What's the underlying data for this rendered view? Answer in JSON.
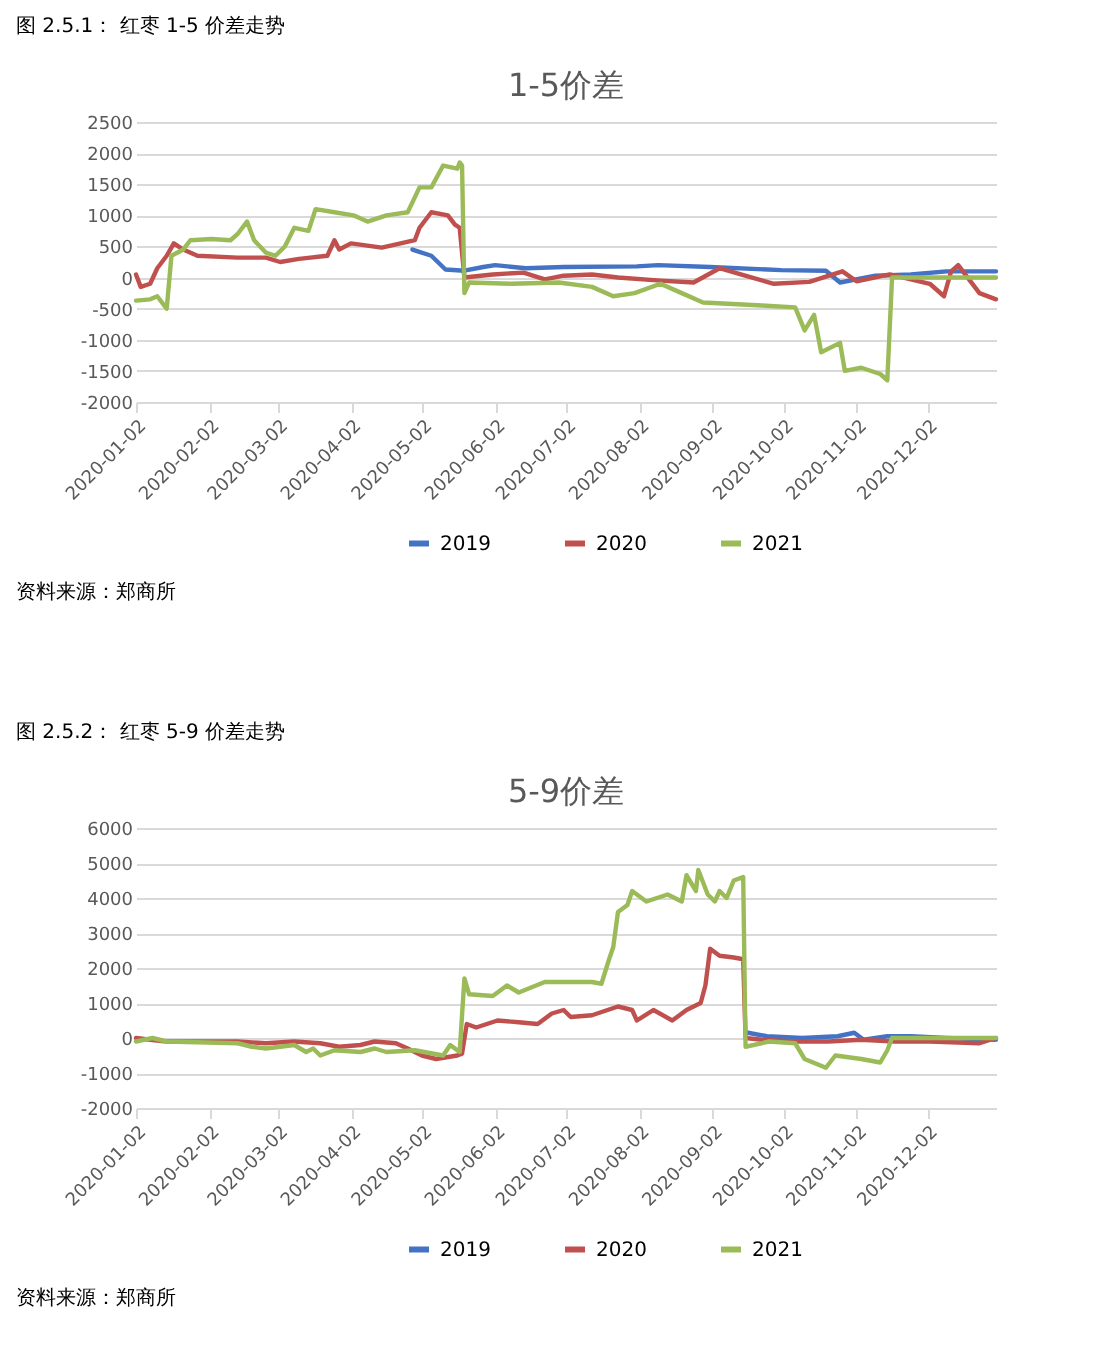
{
  "chart_data": [
    {
      "type": "line",
      "title": "1-5价差",
      "annotations": [
        "图 2.5.1：  红枣 1-5 价差走势",
        "资料来源：郑商所"
      ],
      "xlim": [
        "2020-01-02",
        "2020-12-31"
      ],
      "xticks": [
        "2020-01-02",
        "2020-02-02",
        "2020-03-02",
        "2020-04-02",
        "2020-05-02",
        "2020-06-02",
        "2020-07-02",
        "2020-08-02",
        "2020-09-02",
        "2020-10-02",
        "2020-11-02",
        "2020-12-02"
      ],
      "ylim": [
        -2000,
        2500
      ],
      "yticks": [
        -2000,
        -1500,
        -1000,
        -500,
        0,
        500,
        1000,
        1500,
        2000,
        2500
      ],
      "grid": "y",
      "legend": "bottom",
      "series": [
        {
          "name": "2019",
          "color": "#4472c4",
          "x": [
            "2020-04-28",
            "2020-05-06",
            "2020-05-12",
            "2020-05-20",
            "2020-05-28",
            "2020-06-02",
            "2020-06-15",
            "2020-07-01",
            "2020-08-01",
            "2020-08-10",
            "2020-09-01",
            "2020-10-01",
            "2020-10-20",
            "2020-10-26",
            "2020-11-10",
            "2020-11-25",
            "2020-12-10",
            "2020-12-31"
          ],
          "values": [
            450,
            350,
            130,
            110,
            170,
            200,
            150,
            170,
            180,
            200,
            170,
            120,
            110,
            -80,
            30,
            50,
            100,
            100
          ]
        },
        {
          "name": "2020",
          "color": "#c0504d",
          "x": [
            "2020-01-02",
            "2020-01-04",
            "2020-01-08",
            "2020-01-11",
            "2020-01-15",
            "2020-01-18",
            "2020-01-22",
            "2020-01-28",
            "2020-02-14",
            "2020-02-26",
            "2020-03-03",
            "2020-03-11",
            "2020-03-23",
            "2020-03-26",
            "2020-03-28",
            "2020-04-02",
            "2020-04-15",
            "2020-04-23",
            "2020-04-29",
            "2020-05-01",
            "2020-05-06",
            "2020-05-13",
            "2020-05-16",
            "2020-05-18",
            "2020-05-20",
            "2020-06-01",
            "2020-06-14",
            "2020-06-23",
            "2020-07-01",
            "2020-07-13",
            "2020-07-24",
            "2020-08-11",
            "2020-08-25",
            "2020-09-05",
            "2020-09-14",
            "2020-09-28",
            "2020-10-13",
            "2020-10-27",
            "2020-11-02",
            "2020-11-16",
            "2020-12-03",
            "2020-12-09",
            "2020-12-12",
            "2020-12-15",
            "2020-12-24",
            "2020-12-31"
          ],
          "values": [
            50,
            -150,
            -100,
            150,
            350,
            550,
            450,
            350,
            320,
            320,
            250,
            300,
            350,
            600,
            450,
            550,
            480,
            550,
            600,
            800,
            1050,
            1000,
            850,
            800,
            0,
            50,
            80,
            -30,
            30,
            50,
            0,
            -50,
            -80,
            150,
            50,
            -100,
            -70,
            100,
            -60,
            50,
            -100,
            -300,
            100,
            200,
            -250,
            -350
          ]
        },
        {
          "name": "2021",
          "color": "#9bbb59",
          "x": [
            "2020-01-02",
            "2020-01-08",
            "2020-01-11",
            "2020-01-14",
            "2020-01-15",
            "2020-01-17",
            "2020-01-22",
            "2020-01-25",
            "2020-02-03",
            "2020-02-11",
            "2020-02-14",
            "2020-02-18",
            "2020-02-21",
            "2020-02-26",
            "2020-03-01",
            "2020-03-05",
            "2020-03-09",
            "2020-03-15",
            "2020-03-18",
            "2020-03-26",
            "2020-04-03",
            "2020-04-09",
            "2020-04-17",
            "2020-04-26",
            "2020-05-01",
            "2020-05-06",
            "2020-05-11",
            "2020-05-17",
            "2020-05-18",
            "2020-05-19",
            "2020-05-20",
            "2020-05-22",
            "2020-06-09",
            "2020-06-29",
            "2020-07-13",
            "2020-07-22",
            "2020-07-31",
            "2020-08-11",
            "2020-08-20",
            "2020-08-29",
            "2020-09-23",
            "2020-10-07",
            "2020-10-11",
            "2020-10-15",
            "2020-10-18",
            "2020-10-26",
            "2020-10-28",
            "2020-11-04",
            "2020-11-12",
            "2020-11-15",
            "2020-11-17",
            "2020-12-31"
          ],
          "values": [
            -370,
            -350,
            -300,
            -450,
            -500,
            350,
            450,
            600,
            620,
            600,
            700,
            900,
            600,
            400,
            350,
            500,
            800,
            750,
            1100,
            1050,
            1000,
            900,
            1000,
            1050,
            1450,
            1450,
            1800,
            1750,
            1850,
            1800,
            -250,
            -80,
            -100,
            -80,
            -150,
            -300,
            -250,
            -100,
            -250,
            -400,
            -450,
            -480,
            -850,
            -600,
            -1200,
            -1050,
            -1500,
            -1450,
            -1550,
            -1650,
            0,
            0
          ]
        }
      ]
    },
    {
      "type": "line",
      "title": "5-9价差",
      "annotations": [
        "图 2.5.2：  红枣 5-9 价差走势",
        "资料来源：郑商所"
      ],
      "xlim": [
        "2020-01-02",
        "2020-12-31"
      ],
      "xticks": [
        "2020-01-02",
        "2020-02-02",
        "2020-03-02",
        "2020-04-02",
        "2020-05-02",
        "2020-06-02",
        "2020-07-02",
        "2020-08-02",
        "2020-09-02",
        "2020-10-02",
        "2020-11-02",
        "2020-12-02"
      ],
      "ylim": [
        -2000,
        6000
      ],
      "yticks": [
        -2000,
        -1000,
        0,
        1000,
        2000,
        3000,
        4000,
        5000,
        6000
      ],
      "grid": "y",
      "legend": "bottom",
      "series": [
        {
          "name": "2019",
          "color": "#4472c4",
          "x": [
            "2020-09-17",
            "2020-09-25",
            "2020-10-10",
            "2020-10-25",
            "2020-11-01",
            "2020-11-05",
            "2020-11-15",
            "2020-11-25",
            "2020-12-10",
            "2020-12-31"
          ],
          "values": [
            150,
            50,
            0,
            50,
            150,
            -50,
            50,
            50,
            0,
            -50
          ]
        },
        {
          "name": "2020",
          "color": "#c0504d",
          "x": [
            "2020-01-02",
            "2020-01-08",
            "2020-01-15",
            "2020-02-14",
            "2020-02-26",
            "2020-03-09",
            "2020-03-20",
            "2020-03-28",
            "2020-04-06",
            "2020-04-12",
            "2020-04-21",
            "2020-04-26",
            "2020-05-02",
            "2020-05-08",
            "2020-05-17",
            "2020-05-19",
            "2020-05-21",
            "2020-05-25",
            "2020-06-03",
            "2020-06-12",
            "2020-06-20",
            "2020-06-26",
            "2020-07-01",
            "2020-07-04",
            "2020-07-13",
            "2020-07-24",
            "2020-07-30",
            "2020-08-01",
            "2020-08-08",
            "2020-08-16",
            "2020-08-22",
            "2020-08-28",
            "2020-08-30",
            "2020-09-01",
            "2020-09-05",
            "2020-09-11",
            "2020-09-15",
            "2020-09-16",
            "2020-09-23",
            "2020-10-07",
            "2020-10-21",
            "2020-11-04",
            "2020-11-18",
            "2020-12-03",
            "2020-12-24",
            "2020-12-31"
          ],
          "values": [
            0,
            -50,
            -100,
            -100,
            -150,
            -100,
            -150,
            -250,
            -200,
            -100,
            -150,
            -300,
            -500,
            -600,
            -500,
            -450,
            400,
            300,
            500,
            450,
            400,
            700,
            800,
            600,
            650,
            900,
            800,
            500,
            800,
            500,
            800,
            1000,
            1500,
            2550,
            2350,
            2300,
            2250,
            0,
            -50,
            -100,
            -100,
            -50,
            -100,
            -100,
            -150,
            0
          ]
        },
        {
          "name": "2021",
          "color": "#9bbb59",
          "x": [
            "2020-01-02",
            "2020-01-09",
            "2020-01-15",
            "2020-02-14",
            "2020-02-20",
            "2020-02-26",
            "2020-03-09",
            "2020-03-14",
            "2020-03-17",
            "2020-03-20",
            "2020-03-26",
            "2020-04-06",
            "2020-04-12",
            "2020-04-17",
            "2020-04-29",
            "2020-05-11",
            "2020-05-14",
            "2020-05-18",
            "2020-05-20",
            "2020-05-22",
            "2020-06-01",
            "2020-06-07",
            "2020-06-12",
            "2020-06-23",
            "2020-07-04",
            "2020-07-13",
            "2020-07-17",
            "2020-07-20",
            "2020-07-22",
            "2020-07-24",
            "2020-07-28",
            "2020-07-30",
            "2020-08-05",
            "2020-08-14",
            "2020-08-20",
            "2020-08-22",
            "2020-08-26",
            "2020-08-27",
            "2020-08-31",
            "2020-09-03",
            "2020-09-05",
            "2020-09-08",
            "2020-09-11",
            "2020-09-15",
            "2020-09-16",
            "2020-09-26",
            "2020-10-07",
            "2020-10-11",
            "2020-10-20",
            "2020-10-24",
            "2020-11-04",
            "2020-11-12",
            "2020-11-15",
            "2020-11-17",
            "2020-12-31"
          ],
          "values": [
            -100,
            0,
            -100,
            -150,
            -250,
            -300,
            -200,
            -400,
            -300,
            -500,
            -350,
            -400,
            -300,
            -400,
            -350,
            -500,
            -200,
            -400,
            1700,
            1250,
            1200,
            1500,
            1300,
            1600,
            1600,
            1600,
            1550,
            2200,
            2600,
            3600,
            3800,
            4200,
            3900,
            4100,
            3900,
            4650,
            4200,
            4800,
            4100,
            3900,
            4200,
            4000,
            4500,
            4600,
            -250,
            -100,
            -150,
            -600,
            -850,
            -500,
            -600,
            -700,
            -350,
            0,
            0
          ]
        }
      ]
    }
  ]
}
